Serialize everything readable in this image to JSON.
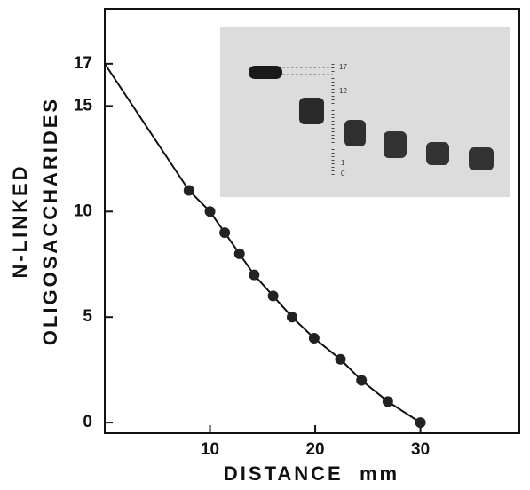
{
  "chart_data": {
    "type": "scatter",
    "xlabel": "DISTANCE  mm",
    "ylabel": [
      "N-LINKED",
      "OLIGOSACCHARIDES"
    ],
    "xlim": [
      0,
      39.4
    ],
    "ylim": [
      -0.5,
      19.6
    ],
    "xticks": [
      10,
      20,
      30
    ],
    "yticks": [
      0,
      5,
      10,
      15,
      17
    ],
    "series": [
      {
        "mode": "line",
        "color": "#111111",
        "x": [
          0,
          8,
          10,
          11.4,
          12.8,
          14.2,
          16,
          17.8,
          19.9,
          22.4,
          24.4,
          26.9,
          30
        ],
        "values": [
          17,
          11,
          10,
          9,
          8,
          7,
          6,
          5,
          4,
          3,
          2,
          1,
          0
        ]
      },
      {
        "mode": "markers",
        "color": "#222222",
        "x": [
          8,
          10,
          11.4,
          12.8,
          14.2,
          16,
          17.8,
          19.9,
          22.4,
          24.4,
          26.9,
          30
        ],
        "values": [
          11,
          10,
          9,
          8,
          7,
          6,
          5,
          4,
          3,
          2,
          1,
          0
        ]
      }
    ],
    "inset_labels": [
      "17",
      "12",
      "1",
      "0"
    ]
  }
}
